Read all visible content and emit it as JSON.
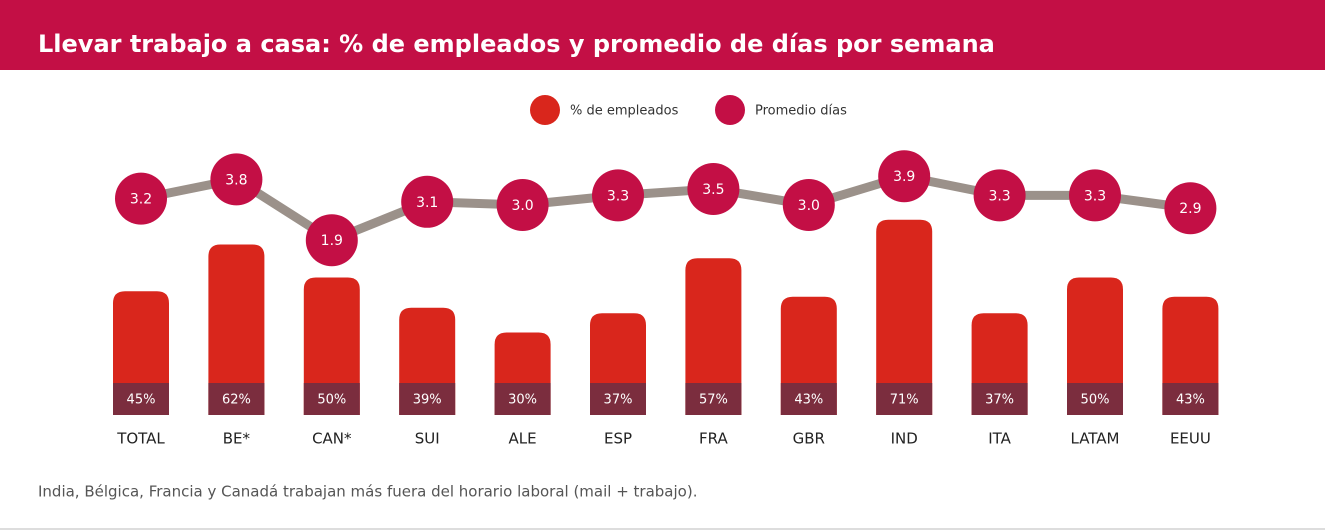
{
  "chart_data": {
    "type": "bar",
    "title": "Llevar trabajo a casa: % de empleados y promedio de días por semana",
    "categories": [
      "TOTAL",
      "BE*",
      "CAN*",
      "SUI",
      "ALE",
      "ESP",
      "FRA",
      "GBR",
      "IND",
      "ITA",
      "LATAM",
      "EEUU"
    ],
    "series": [
      {
        "name": "% de empleados",
        "type": "bar",
        "color": "#d9261c",
        "label_color": "#7b2d3e",
        "values": [
          45,
          62,
          50,
          39,
          30,
          37,
          57,
          43,
          71,
          37,
          50,
          43
        ],
        "value_labels": [
          "45%",
          "62%",
          "50%",
          "39%",
          "30%",
          "37%",
          "57%",
          "43%",
          "71%",
          "37%",
          "50%",
          "43%"
        ]
      },
      {
        "name": "Promedio días",
        "type": "line",
        "axis": "y2",
        "color": "#c30f45",
        "line_color": "#9b918a",
        "values": [
          3.2,
          3.8,
          1.9,
          3.1,
          3.0,
          3.3,
          3.5,
          3.0,
          3.9,
          3.3,
          3.3,
          2.9
        ],
        "value_labels": [
          "3.2",
          "3.8",
          "1.9",
          "3.1",
          "3.0",
          "3.3",
          "3.5",
          "3.0",
          "3.9",
          "3.3",
          "3.3",
          "2.9"
        ]
      }
    ],
    "footnote": "India, Bélgica, Francia y Canadá trabajan más fuera del horario laboral (mail + trabajo)."
  }
}
